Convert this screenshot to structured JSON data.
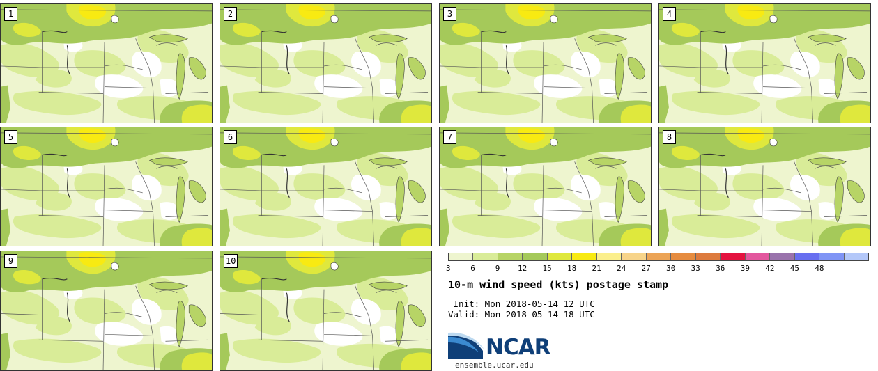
{
  "title": "10-m wind speed (kts) postage stamp",
  "times": {
    "init": " Init: Mon 2018-05-14 12 UTC",
    "valid": "Valid: Mon 2018-05-14 18 UTC"
  },
  "members": [
    "1",
    "2",
    "3",
    "4",
    "5",
    "6",
    "7",
    "8",
    "9",
    "10"
  ],
  "legend": {
    "colors": [
      "#eef5cf",
      "#d9ec98",
      "#b7d466",
      "#a5c95a",
      "#dfe83d",
      "#f8ea12",
      "#fbef8c",
      "#f7d48a",
      "#eca456",
      "#e68c40",
      "#dd7b3e",
      "#e4123f",
      "#e3579e",
      "#9a73ac",
      "#686ff0",
      "#8095f5",
      "#b4c8f9"
    ],
    "ticks": [
      "3",
      "6",
      "9",
      "12",
      "15",
      "18",
      "21",
      "24",
      "27",
      "30",
      "33",
      "36",
      "39",
      "42",
      "45",
      "48"
    ]
  },
  "logo": {
    "icon": "ncar-swoosh-icon",
    "text": "NCAR",
    "url": "ensemble.ucar.edu"
  }
}
